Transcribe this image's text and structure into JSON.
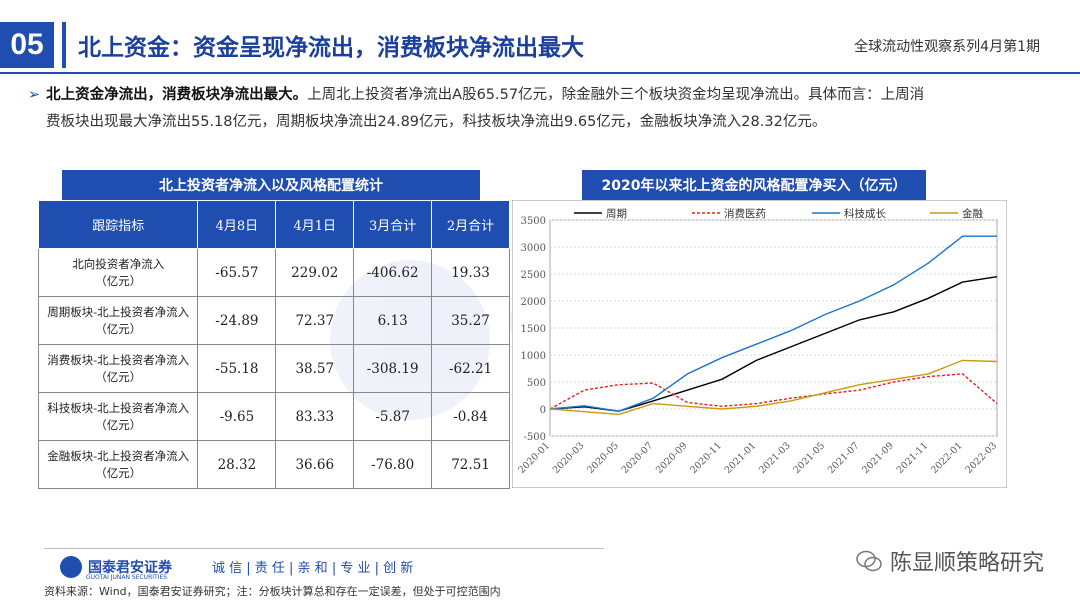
{
  "header": {
    "section_number": "05",
    "title": "北上资金：资金呈现净流出，消费板块净流出最大",
    "series": "全球流动性观察系列4月第1期"
  },
  "bullet": {
    "lead": "北上资金净流出，消费板块净流出最大。",
    "text": "上周北上投资者净流出A股65.57亿元，除金融外三个板块资金均呈现净流出。具体而言：上周消",
    "text2": "费板块出现最大净流出55.18亿元，周期板块净流出24.89亿元，科技板块净流出9.65亿元，金融板块净流入28.32亿元。"
  },
  "table": {
    "heading": "北上投资者净流入以及风格配置统计",
    "columns": [
      "跟踪指标",
      "4月8日",
      "4月1日",
      "3月合计",
      "2月合计"
    ],
    "rows": [
      {
        "label1": "北向投资者净流入",
        "label2": "（亿元）",
        "values": [
          "-65.57",
          "229.02",
          "-406.62",
          "19.33"
        ]
      },
      {
        "label1": "周期板块-北上投资者净流入",
        "label2": "（亿元）",
        "values": [
          "-24.89",
          "72.37",
          "6.13",
          "35.27"
        ]
      },
      {
        "label1": "消费板块-北上投资者净流入",
        "label2": "（亿元）",
        "values": [
          "-55.18",
          "38.57",
          "-308.19",
          "-62.21"
        ]
      },
      {
        "label1": "科技板块-北上投资者净流入",
        "label2": "（亿元）",
        "values": [
          "-9.65",
          "83.33",
          "-5.87",
          "-0.84"
        ]
      },
      {
        "label1": "金融板块-北上投资者净流入",
        "label2": "（亿元）",
        "values": [
          "28.32",
          "36.66",
          "-76.80",
          "72.51"
        ]
      }
    ]
  },
  "chart_data": {
    "type": "line",
    "title": "2020年以来北上资金的风格配置净买入（亿元）",
    "categories": [
      "2020-01",
      "2020-03",
      "2020-05",
      "2020-07",
      "2020-09",
      "2020-11",
      "2021-01",
      "2021-03",
      "2021-05",
      "2021-07",
      "2021-09",
      "2021-11",
      "2022-01",
      "2022-03"
    ],
    "ylim": [
      -500,
      3500
    ],
    "yticks": [
      "3500",
      "3000",
      "2500",
      "2000",
      "1500",
      "1000",
      "500",
      "0",
      "-500"
    ],
    "series": [
      {
        "name": "周期",
        "color": "#000000",
        "dash": "",
        "values": [
          0,
          40,
          -40,
          150,
          350,
          550,
          900,
          1150,
          1400,
          1650,
          1800,
          2050,
          2350,
          2450
        ]
      },
      {
        "name": "消费医药",
        "color": "#e8201c",
        "dash": "3,2",
        "values": [
          0,
          350,
          450,
          480,
          120,
          50,
          100,
          200,
          280,
          350,
          500,
          600,
          650,
          100
        ]
      },
      {
        "name": "科技成长",
        "color": "#1a73d1",
        "dash": "",
        "values": [
          0,
          60,
          -40,
          200,
          650,
          950,
          1200,
          1450,
          1750,
          2000,
          2300,
          2700,
          3200,
          3200
        ]
      },
      {
        "name": "金融",
        "color": "#c89a10",
        "dash": "",
        "values": [
          0,
          -50,
          -100,
          100,
          50,
          0,
          50,
          150,
          300,
          450,
          550,
          650,
          900,
          880
        ]
      }
    ]
  },
  "watermark_text": "GUOTAI JUNAN",
  "footer": {
    "logo_text": "国泰君安证券",
    "logo_sub": "GUOTAI JUNAN SECURITIES",
    "motto": "诚 信 | 责 任 | 亲 和 | 专 业 | 创 新",
    "source": "资料来源：Wind，国泰君安证券研究；注：分板块计算总和存在一定误差，但处于可控范围内",
    "brand": "陈显顺策略研究"
  }
}
